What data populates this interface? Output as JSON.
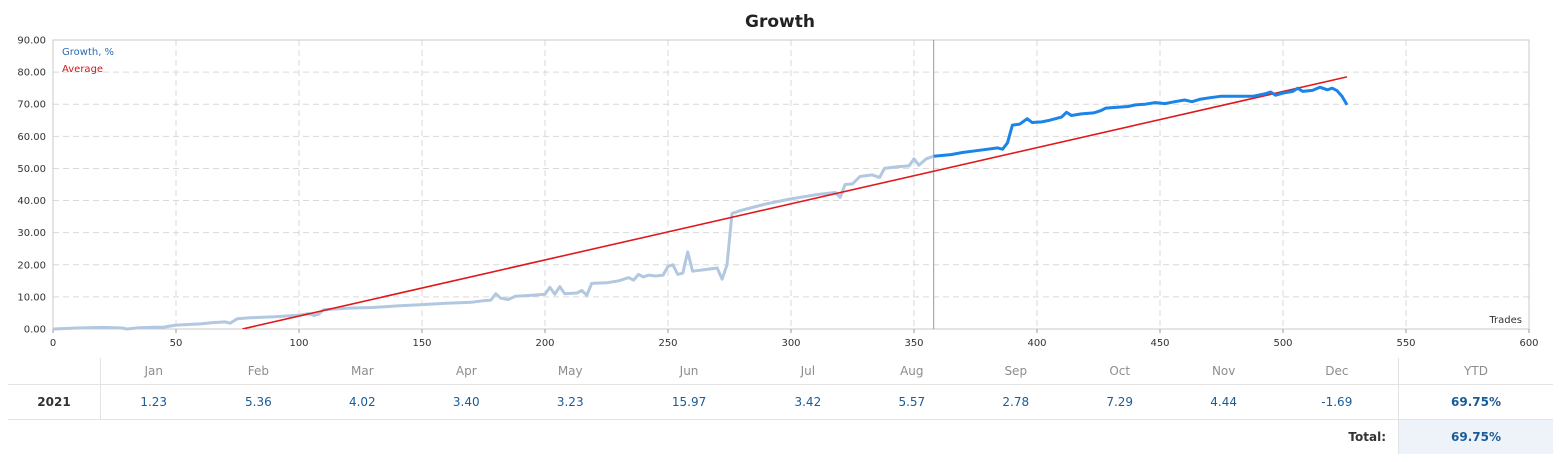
{
  "chart_data": {
    "type": "line",
    "title": "Growth",
    "xlabel": "Trades",
    "ylabel": "",
    "xlim": [
      0,
      600
    ],
    "ylim": [
      0,
      90
    ],
    "x_ticks": [
      0,
      50,
      100,
      150,
      200,
      250,
      300,
      350,
      400,
      450,
      500,
      550,
      600
    ],
    "y_ticks": [
      "0.00",
      "10.00",
      "20.00",
      "30.00",
      "40.00",
      "50.00",
      "60.00",
      "70.00",
      "80.00",
      "90.00"
    ],
    "grid": true,
    "legend_position": "top-left",
    "divider_x": 358,
    "series": [
      {
        "name": "Growth, %",
        "color_history": "#b2c8e0",
        "color_recent": "#1a84e8",
        "points": [
          [
            0,
            0
          ],
          [
            10,
            0.3
          ],
          [
            20,
            0.5
          ],
          [
            28,
            0.3
          ],
          [
            30,
            0
          ],
          [
            35,
            0.4
          ],
          [
            40,
            0.5
          ],
          [
            45,
            0.6
          ],
          [
            50,
            1.2
          ],
          [
            55,
            1.4
          ],
          [
            60,
            1.6
          ],
          [
            65,
            2.0
          ],
          [
            70,
            2.2
          ],
          [
            72,
            1.8
          ],
          [
            75,
            3.2
          ],
          [
            80,
            3.5
          ],
          [
            90,
            3.8
          ],
          [
            100,
            4.3
          ],
          [
            104,
            4.8
          ],
          [
            106,
            4.2
          ],
          [
            108,
            4.6
          ],
          [
            110,
            6.0
          ],
          [
            120,
            6.5
          ],
          [
            130,
            6.7
          ],
          [
            140,
            7.2
          ],
          [
            150,
            7.6
          ],
          [
            160,
            8.0
          ],
          [
            170,
            8.3
          ],
          [
            175,
            8.8
          ],
          [
            178,
            9.0
          ],
          [
            180,
            11.0
          ],
          [
            182,
            9.6
          ],
          [
            185,
            9.2
          ],
          [
            188,
            10.2
          ],
          [
            195,
            10.5
          ],
          [
            200,
            10.8
          ],
          [
            202,
            13.0
          ],
          [
            204,
            10.8
          ],
          [
            206,
            13.2
          ],
          [
            208,
            11.0
          ],
          [
            213,
            11.2
          ],
          [
            215,
            12.0
          ],
          [
            217,
            10.5
          ],
          [
            219,
            14.2
          ],
          [
            225,
            14.4
          ],
          [
            230,
            15.0
          ],
          [
            234,
            16.0
          ],
          [
            236,
            15.2
          ],
          [
            238,
            17.0
          ],
          [
            240,
            16.2
          ],
          [
            242,
            16.8
          ],
          [
            245,
            16.5
          ],
          [
            248,
            16.8
          ],
          [
            250,
            19.5
          ],
          [
            252,
            20.0
          ],
          [
            254,
            17.0
          ],
          [
            256,
            17.4
          ],
          [
            258,
            24.0
          ],
          [
            260,
            18.0
          ],
          [
            265,
            18.5
          ],
          [
            270,
            19.0
          ],
          [
            272,
            15.5
          ],
          [
            274,
            20.0
          ],
          [
            276,
            36.0
          ],
          [
            280,
            37.0
          ],
          [
            285,
            38.0
          ],
          [
            290,
            39.0
          ],
          [
            300,
            40.5
          ],
          [
            310,
            41.8
          ],
          [
            318,
            42.5
          ],
          [
            320,
            41.0
          ],
          [
            322,
            45.0
          ],
          [
            325,
            45.2
          ],
          [
            328,
            47.5
          ],
          [
            333,
            48.0
          ],
          [
            336,
            47.2
          ],
          [
            338,
            50.0
          ],
          [
            343,
            50.5
          ],
          [
            348,
            50.8
          ],
          [
            350,
            53.0
          ],
          [
            352,
            51.0
          ],
          [
            355,
            53.0
          ],
          [
            358,
            53.8
          ],
          [
            365,
            54.3
          ],
          [
            370,
            55.0
          ],
          [
            375,
            55.5
          ],
          [
            380,
            56.0
          ],
          [
            384,
            56.4
          ],
          [
            386,
            56.0
          ],
          [
            388,
            58.0
          ],
          [
            390,
            63.5
          ],
          [
            393,
            63.8
          ],
          [
            396,
            65.5
          ],
          [
            398,
            64.3
          ],
          [
            402,
            64.5
          ],
          [
            405,
            65.0
          ],
          [
            410,
            66.0
          ],
          [
            412,
            67.5
          ],
          [
            414,
            66.5
          ],
          [
            418,
            67.0
          ],
          [
            423,
            67.3
          ],
          [
            426,
            68.0
          ],
          [
            428,
            68.8
          ],
          [
            432,
            69.0
          ],
          [
            437,
            69.3
          ],
          [
            440,
            69.8
          ],
          [
            444,
            70.0
          ],
          [
            448,
            70.5
          ],
          [
            452,
            70.2
          ],
          [
            456,
            70.8
          ],
          [
            460,
            71.3
          ],
          [
            463,
            70.8
          ],
          [
            466,
            71.5
          ],
          [
            470,
            72.0
          ],
          [
            475,
            72.5
          ],
          [
            480,
            72.5
          ],
          [
            488,
            72.5
          ],
          [
            493,
            73.3
          ],
          [
            495,
            73.8
          ],
          [
            497,
            72.8
          ],
          [
            500,
            73.5
          ],
          [
            504,
            74.0
          ],
          [
            506,
            75.0
          ],
          [
            508,
            74.0
          ],
          [
            512,
            74.3
          ],
          [
            515,
            75.3
          ],
          [
            518,
            74.5
          ],
          [
            520,
            75.0
          ],
          [
            522,
            74.2
          ],
          [
            524,
            72.5
          ],
          [
            526,
            69.8
          ]
        ]
      },
      {
        "name": "Average",
        "color": "#e0191c",
        "points": [
          [
            77,
            0
          ],
          [
            526,
            78.5
          ]
        ]
      }
    ]
  },
  "returns_table": {
    "months": [
      "Jan",
      "Feb",
      "Mar",
      "Apr",
      "May",
      "Jun",
      "Jul",
      "Aug",
      "Sep",
      "Oct",
      "Nov",
      "Dec"
    ],
    "ytd_header": "YTD",
    "year": "2021",
    "values": [
      "1.23",
      "5.36",
      "4.02",
      "3.40",
      "3.23",
      "15.97",
      "3.42",
      "5.57",
      "2.78",
      "7.29",
      "4.44",
      "-1.69"
    ],
    "ytd": "69.75%",
    "total_label": "Total:",
    "total_value": "69.75%"
  }
}
